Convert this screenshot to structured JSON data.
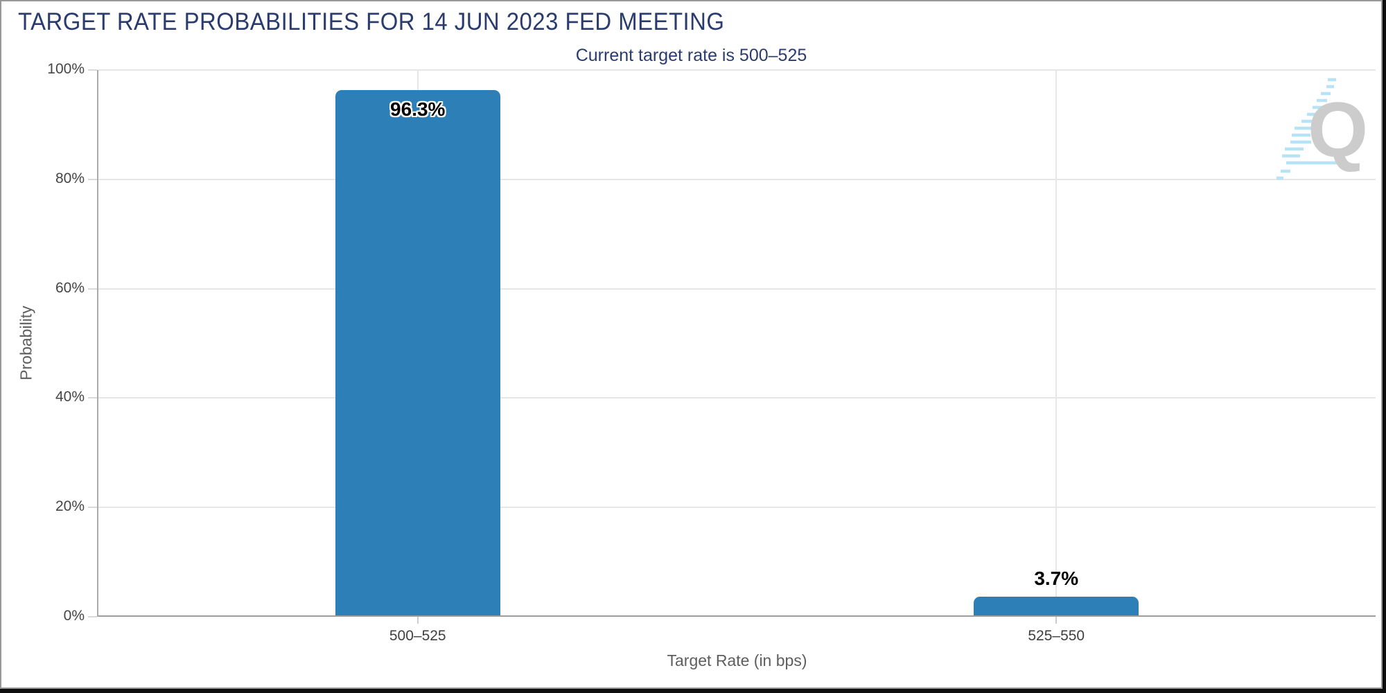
{
  "chart_data": {
    "type": "bar",
    "title": "TARGET RATE PROBABILITIES FOR 14 JUN 2023 FED MEETING",
    "subtitle": "Current target rate is 500–525",
    "categories": [
      "500–525",
      "525–550"
    ],
    "values": [
      96.3,
      3.7
    ],
    "point_labels": [
      "96.3%",
      "3.7%"
    ],
    "xlabel": "Target Rate (in bps)",
    "ylabel": "Probability",
    "ylim": [
      0,
      100
    ],
    "yticks": [
      0,
      20,
      40,
      60,
      80,
      100
    ],
    "ytick_labels": [
      "0%",
      "20%",
      "40%",
      "60%",
      "80%",
      "100%"
    ],
    "legend": "none",
    "grid": "on",
    "colors": {
      "bar": "#2d7fb8",
      "title_text": "#2a3c6e",
      "subtitle_text": "#2a3c6e",
      "logo_gray": "#c8c8c8",
      "logo_cyan": "#b3e0f6"
    }
  },
  "logo": {
    "letter": "Q"
  }
}
